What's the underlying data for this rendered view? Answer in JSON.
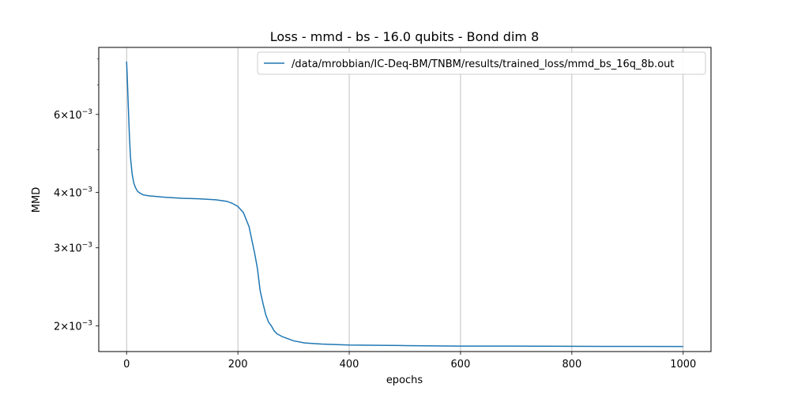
{
  "chart_data": {
    "type": "line",
    "title": "Loss - mmd - bs - 16.0 qubits - Bond dim 8",
    "xlabel": "epochs",
    "ylabel": "MMD",
    "xlim": [
      -50,
      1050
    ],
    "ylim": [
      0.00175,
      0.0085
    ],
    "y_scale": "log",
    "grid": "x-major",
    "legend_position": "top-right",
    "x_ticks": [
      0,
      200,
      400,
      600,
      800,
      1000
    ],
    "x_tick_labels": [
      "0",
      "200",
      "400",
      "600",
      "800",
      "1000"
    ],
    "y_ticks": [
      0.002,
      0.003,
      0.004,
      0.006
    ],
    "y_tick_labels": [
      {
        "mantissa": "2",
        "exp": "−3"
      },
      {
        "mantissa": "3",
        "exp": "−3"
      },
      {
        "mantissa": "4",
        "exp": "−3"
      },
      {
        "mantissa": "6",
        "exp": "−3"
      }
    ],
    "series": [
      {
        "name": "/data/mrobbian/IC-Deq-BM/TNBM/results/trained_loss/mmd_bs_16q_8b.out",
        "color": "#1f77b4",
        "x": [
          0,
          1,
          3,
          5,
          7,
          10,
          13,
          16,
          20,
          25,
          30,
          40,
          50,
          70,
          100,
          130,
          160,
          180,
          190,
          200,
          210,
          220,
          230,
          235,
          240,
          245,
          250,
          255,
          260,
          265,
          270,
          280,
          290,
          300,
          320,
          350,
          400,
          500,
          600,
          700,
          800,
          900,
          1000
        ],
        "y": [
          0.0079,
          0.0074,
          0.0063,
          0.0054,
          0.0048,
          0.0044,
          0.0042,
          0.0041,
          0.00402,
          0.00398,
          0.00395,
          0.00393,
          0.00392,
          0.0039,
          0.00388,
          0.00387,
          0.00385,
          0.00382,
          0.00378,
          0.00372,
          0.0036,
          0.00335,
          0.00292,
          0.0027,
          0.0024,
          0.00225,
          0.00212,
          0.00204,
          0.002,
          0.00195,
          0.00192,
          0.00189,
          0.00187,
          0.00185,
          0.00183,
          0.00182,
          0.00181,
          0.001805,
          0.0018,
          0.0018,
          0.001798,
          0.001797,
          0.001796
        ]
      }
    ]
  }
}
